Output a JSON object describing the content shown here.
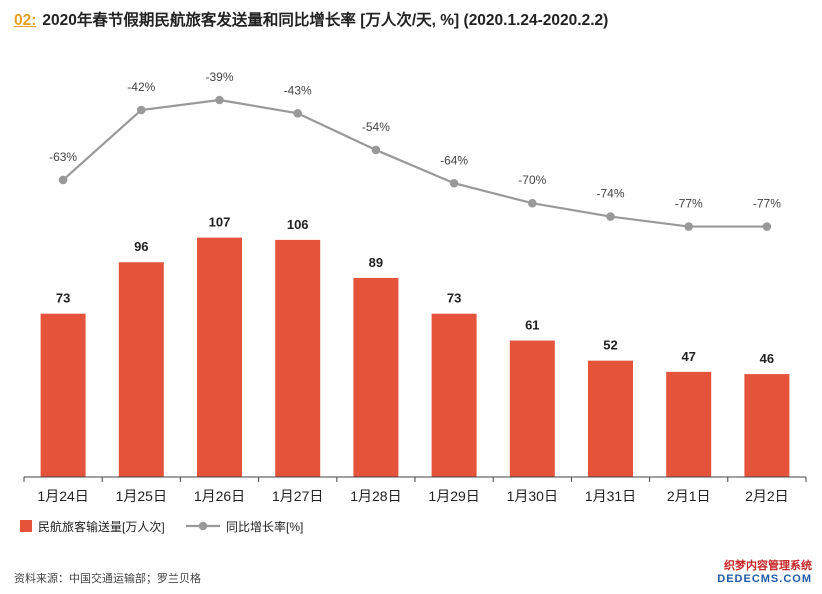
{
  "title": {
    "prefix": "02:",
    "text": "2020年春节假期民航旅客发送量和同比增长率 [万人次/天, %] (2020.1.24-2020.2.2)"
  },
  "chart_data": {
    "type": "bar",
    "categories": [
      "1月24日",
      "1月25日",
      "1月26日",
      "1月27日",
      "1月28日",
      "1月29日",
      "1月30日",
      "1月31日",
      "2月1日",
      "2月2日"
    ],
    "series": [
      {
        "name": "民航旅客输送量[万人次]",
        "type": "bar",
        "color": "#e5533a",
        "values": [
          73,
          96,
          107,
          106,
          89,
          73,
          61,
          52,
          47,
          46
        ],
        "labels": [
          "73",
          "96",
          "107",
          "106",
          "89",
          "73",
          "61",
          "52",
          "47",
          "46"
        ]
      },
      {
        "name": "同比增长率[%]",
        "type": "line",
        "color": "#999999",
        "values": [
          -63,
          -42,
          -39,
          -43,
          -54,
          -64,
          -70,
          -74,
          -77,
          -77
        ],
        "labels": [
          "-63%",
          "-42%",
          "-39%",
          "-43%",
          "-54%",
          "-64%",
          "-70%",
          "-74%",
          "-77%",
          "-77%"
        ]
      }
    ],
    "legend_position": "bottom-left",
    "grid": false
  },
  "source": "资料来源：中国交通运输部；罗兰贝格",
  "watermark": {
    "line1": "织梦内容管理系统",
    "line2": "DEDECMS.COM"
  }
}
